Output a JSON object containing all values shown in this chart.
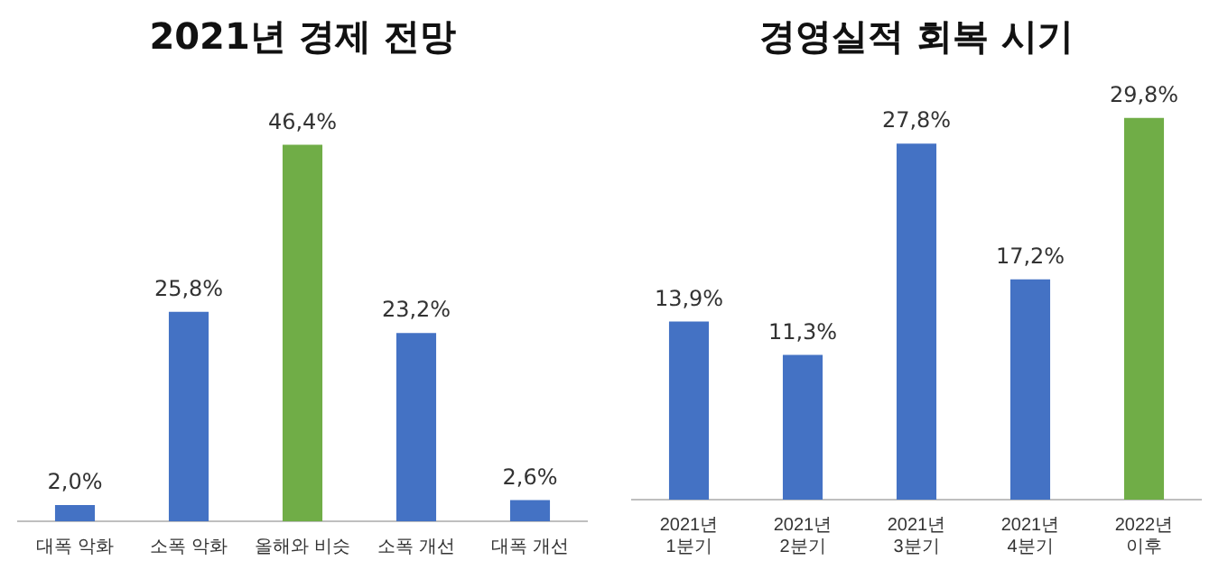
{
  "chart_data": [
    {
      "type": "bar",
      "title": "2021년 경제 전망",
      "categories": [
        "대폭 악화",
        "소폭 악화",
        "올해와 비슷",
        "소폭 개선",
        "대폭 개선"
      ],
      "values": [
        2.0,
        25.8,
        46.4,
        23.2,
        2.6
      ],
      "colors": [
        "#4472c4",
        "#4472c4",
        "#70ad47",
        "#4472c4",
        "#4472c4"
      ],
      "value_labels": [
        "2,0%",
        "25,8%",
        "46,4%",
        "23,2%",
        "2,6%"
      ],
      "grid": false,
      "legend": false,
      "tick_labels": "x"
    },
    {
      "type": "bar",
      "title": "경영실적 회복 시기",
      "categories": [
        "2021년 1분기",
        "2021년 2분기",
        "2021년 3분기",
        "2021년 4분기",
        "2022년 이후"
      ],
      "values": [
        13.9,
        11.3,
        27.8,
        17.2,
        29.8
      ],
      "colors": [
        "#4472c4",
        "#4472c4",
        "#4472c4",
        "#4472c4",
        "#70ad47"
      ],
      "value_labels": [
        "13,9%",
        "11,3%",
        "27,8%",
        "17,2%",
        "29,8%"
      ],
      "grid": false,
      "legend": false,
      "tick_labels": "x"
    }
  ]
}
